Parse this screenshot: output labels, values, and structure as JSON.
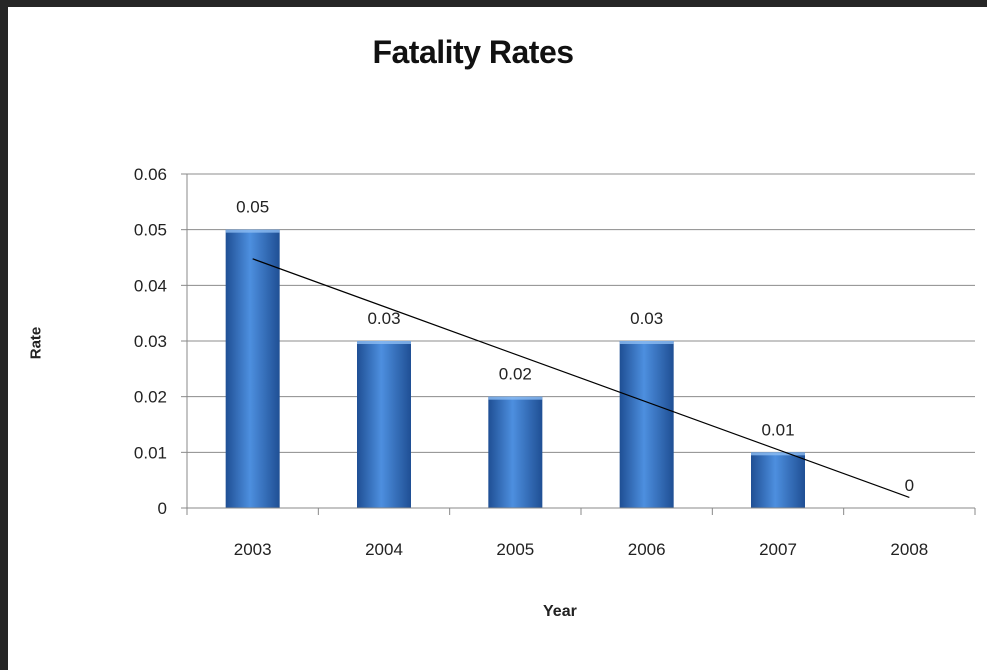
{
  "chart_data": {
    "type": "bar",
    "title": "Fatality Rates",
    "xlabel": "Year",
    "ylabel": "Rate",
    "categories": [
      "2003",
      "2004",
      "2005",
      "2006",
      "2007",
      "2008"
    ],
    "values": [
      0.05,
      0.03,
      0.02,
      0.03,
      0.01,
      0
    ],
    "data_labels": [
      "0.05",
      "0.03",
      "0.02",
      "0.03",
      "0.01",
      "0"
    ],
    "ylim": [
      0,
      0.06
    ],
    "yticks": [
      "0",
      "0.01",
      "0.02",
      "0.03",
      "0.04",
      "0.05",
      "0.06"
    ],
    "grid": true,
    "legend": "none",
    "trendline": {
      "type": "linear",
      "color": "#000000"
    },
    "colors": {
      "bar": "#3f7fd0",
      "bar_dark": "#1f4f94",
      "grid": "#8c8c8c"
    }
  }
}
